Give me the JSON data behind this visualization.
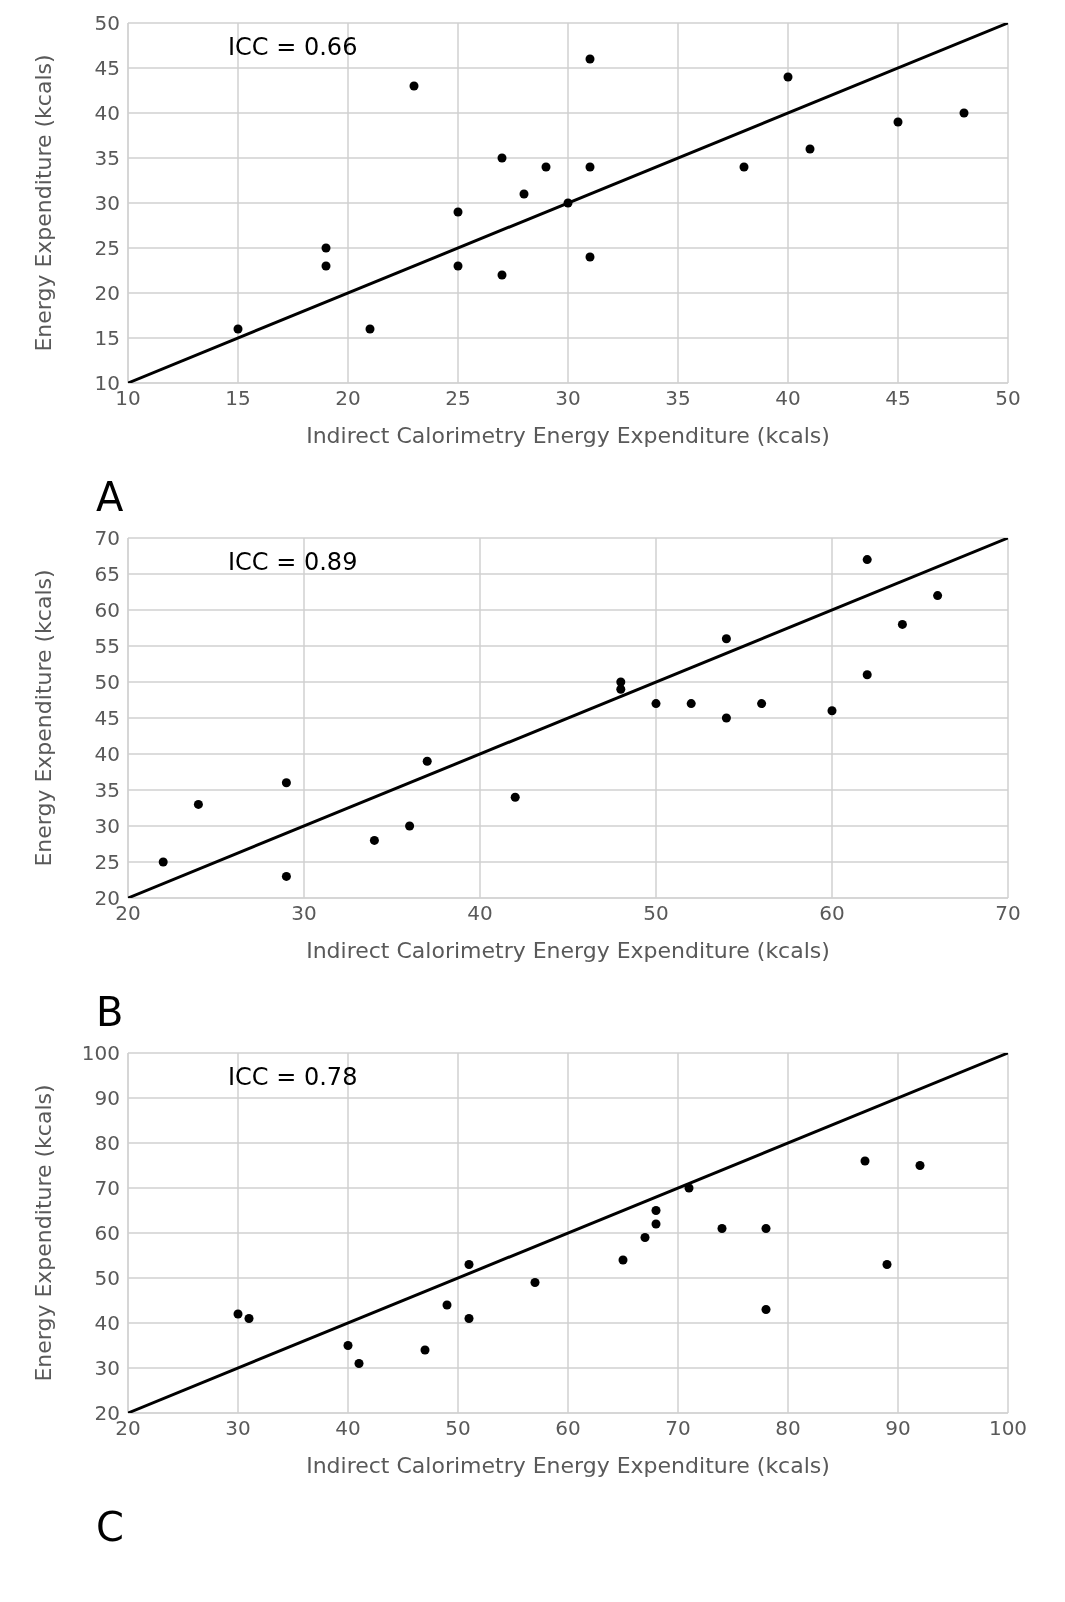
{
  "chart_data": [
    {
      "type": "scatter",
      "xlabel": "Indirect Calorimetry Energy Expenditure (kcals)",
      "ylabel": "Energy Expenditure (kcals)",
      "annotations": [
        "ICC = 0.66",
        "A"
      ],
      "xlim": [
        10,
        50
      ],
      "ylim": [
        10,
        50
      ],
      "xticks": [
        10,
        15,
        20,
        25,
        30,
        35,
        40,
        45,
        50
      ],
      "yticks": [
        10,
        15,
        20,
        25,
        30,
        35,
        40,
        45,
        50
      ],
      "grid": true,
      "marker": "circle",
      "series": [
        {
          "color": "#000000",
          "x": [
            15,
            19,
            19,
            21,
            23,
            25,
            25,
            27,
            27,
            28,
            29,
            30,
            31,
            31,
            31,
            38,
            40,
            41,
            45,
            48
          ],
          "values": [
            16,
            25,
            23,
            16,
            43,
            29,
            23,
            35,
            22,
            31,
            34,
            30,
            46,
            34,
            24,
            34,
            44,
            36,
            39,
            40
          ]
        },
        {
          "type": "line",
          "marker": "none",
          "line_style": "solid",
          "color": "#000000",
          "x": [
            10,
            50
          ],
          "values": [
            10,
            50
          ]
        }
      ]
    },
    {
      "type": "scatter",
      "xlabel": "Indirect Calorimetry Energy Expenditure (kcals)",
      "ylabel": "Energy Expenditure (kcals)",
      "annotations": [
        "ICC = 0.89",
        "B"
      ],
      "xlim": [
        20,
        70
      ],
      "ylim": [
        20,
        70
      ],
      "xticks": [
        20,
        30,
        40,
        50,
        60,
        70
      ],
      "yticks": [
        20,
        25,
        30,
        35,
        40,
        45,
        50,
        55,
        60,
        65,
        70
      ],
      "grid": true,
      "marker": "circle",
      "series": [
        {
          "color": "#000000",
          "x": [
            22,
            24,
            29,
            29,
            34,
            36,
            37,
            42,
            48,
            48,
            50,
            52,
            54,
            54,
            56,
            60,
            62,
            62,
            64,
            66
          ],
          "values": [
            25,
            33,
            36,
            23,
            28,
            30,
            39,
            34,
            50,
            49,
            47,
            47,
            56,
            45,
            47,
            46,
            67,
            51,
            58,
            62
          ]
        },
        {
          "type": "line",
          "marker": "none",
          "line_style": "solid",
          "color": "#000000",
          "x": [
            20,
            70
          ],
          "values": [
            20,
            70
          ]
        }
      ]
    },
    {
      "type": "scatter",
      "xlabel": "Indirect Calorimetry Energy Expenditure (kcals)",
      "ylabel": "Energy Expenditure (kcals)",
      "annotations": [
        "ICC = 0.78",
        "C"
      ],
      "xlim": [
        20,
        100
      ],
      "ylim": [
        20,
        100
      ],
      "xticks": [
        20,
        30,
        40,
        50,
        60,
        70,
        80,
        90,
        100
      ],
      "yticks": [
        20,
        30,
        40,
        50,
        60,
        70,
        80,
        90,
        100
      ],
      "grid": true,
      "marker": "circle",
      "series": [
        {
          "color": "#000000",
          "x": [
            30,
            31,
            40,
            41,
            47,
            49,
            51,
            51,
            57,
            65,
            67,
            68,
            68,
            71,
            74,
            78,
            78,
            87,
            89,
            92
          ],
          "values": [
            42,
            41,
            35,
            31,
            34,
            44,
            53,
            41,
            49,
            54,
            59,
            65,
            62,
            70,
            61,
            61,
            43,
            76,
            53,
            75
          ]
        },
        {
          "type": "line",
          "marker": "none",
          "line_style": "solid",
          "color": "#000000",
          "x": [
            20,
            100
          ],
          "values": [
            20,
            100
          ]
        }
      ]
    }
  ]
}
